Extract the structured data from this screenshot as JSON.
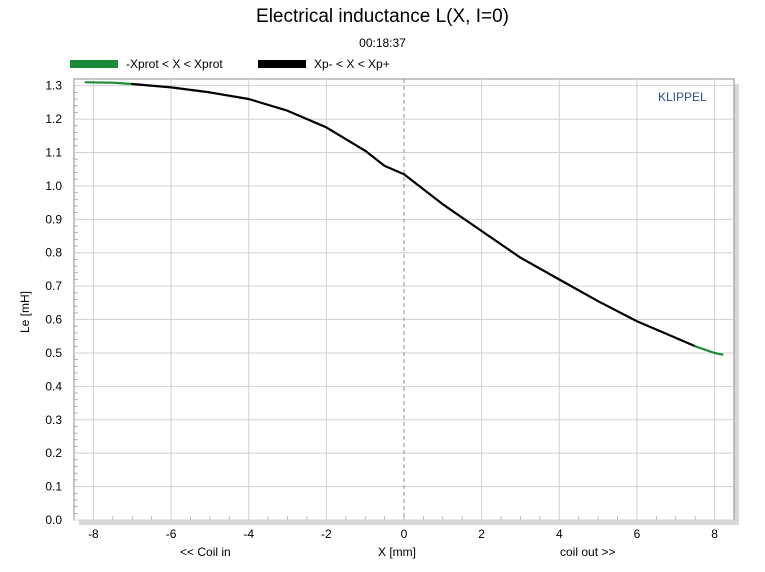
{
  "colors": {
    "legend_protect": "#1a8a3a",
    "legend_main": "#000000",
    "brand": "#2f4f8f"
  },
  "chart_data": {
    "type": "line",
    "title": "Electrical inductance L(X, I=0)",
    "subtitle": "00:18:37",
    "xlabel": "X [mm]",
    "ylabel": "Le [mH]",
    "x_caption_left": "<< Coil in",
    "x_caption_right": "coil out >>",
    "brand": "KLIPPEL",
    "xlim": [
      -8.5,
      8.5
    ],
    "ylim": [
      0.0,
      1.32
    ],
    "xticks": [
      -8,
      -6,
      -4,
      -2,
      0,
      2,
      4,
      6,
      8
    ],
    "yticks": [
      0.0,
      0.1,
      0.2,
      0.3,
      0.4,
      0.5,
      0.6,
      0.7,
      0.8,
      0.9,
      1.0,
      1.1,
      1.2,
      1.3
    ],
    "grid": true,
    "legend_position": "top-left",
    "series": [
      {
        "name": "-Xprot < X < Xprot",
        "color": "#1a8a3a",
        "x": [
          -8.2,
          -7.5,
          -7.0
        ],
        "y": [
          1.31,
          1.309,
          1.305
        ]
      },
      {
        "name": "Xp- < X < Xp+",
        "color": "#000000",
        "x": [
          -7.0,
          -6.0,
          -5.0,
          -4.0,
          -3.0,
          -2.0,
          -1.0,
          -0.5,
          0.0,
          0.5,
          1.0,
          2.0,
          3.0,
          4.0,
          5.0,
          6.0,
          7.0,
          7.5
        ],
        "y": [
          1.305,
          1.295,
          1.28,
          1.26,
          1.225,
          1.175,
          1.105,
          1.06,
          1.035,
          0.99,
          0.945,
          0.865,
          0.785,
          0.72,
          0.655,
          0.595,
          0.545,
          0.52
        ]
      },
      {
        "name": "",
        "color": "#1a8a3a",
        "x": [
          7.5,
          8.0,
          8.2
        ],
        "y": [
          0.52,
          0.5,
          0.495
        ]
      }
    ]
  }
}
